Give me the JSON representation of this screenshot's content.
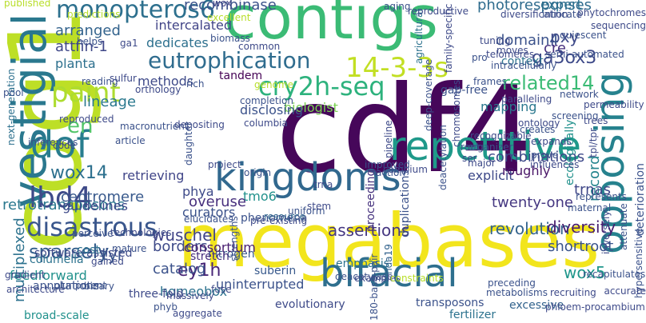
{
  "words": [
    {
      "text": "cdf4",
      "color": "#46075a"
    },
    {
      "text": "cog1",
      "color": "#bddf26"
    },
    {
      "text": "megabases",
      "color": "#f2e51d"
    },
    {
      "text": "contigs",
      "color": "#3bbb75"
    },
    {
      "text": "kingdoms",
      "color": "#31688e"
    },
    {
      "text": "repetitive",
      "color": "#1f998a"
    },
    {
      "text": "bifacial",
      "color": "#2e6f8e"
    },
    {
      "text": "vestigial",
      "color": "#2a788e"
    },
    {
      "text": "opposing",
      "color": "#26828e"
    },
    {
      "text": "dof",
      "color": "#287d8e"
    },
    {
      "text": "14-3-3s",
      "color": "#c2df23"
    },
    {
      "text": "cry2h-seq",
      "color": "#2db27d"
    },
    {
      "text": "disastrous",
      "color": "#39568c"
    },
    {
      "text": "paint",
      "color": "#addc30"
    },
    {
      "text": "lbd4",
      "color": "#3e4a89"
    },
    {
      "text": "monopteros6",
      "color": "#2d708e"
    },
    {
      "text": "eutrophication",
      "color": "#2f6c8e"
    },
    {
      "text": "related14",
      "color": "#3bbb75"
    },
    {
      "text": "sparsely",
      "color": "#35608d"
    },
    {
      "text": "en",
      "color": "#52c569"
    },
    {
      "text": "ey1h",
      "color": "#482677"
    },
    {
      "text": "assertions",
      "color": "#453781"
    },
    {
      "text": "revolution",
      "color": "#33638d"
    },
    {
      "text": "retrotransposons",
      "color": "#2a788e"
    },
    {
      "text": "wuschel",
      "color": "#414487"
    },
    {
      "text": "shortroot",
      "color": "#3a548c"
    },
    {
      "text": "homeobox",
      "color": "#2c728e"
    },
    {
      "text": "uninterrupted",
      "color": "#3b528b"
    },
    {
      "text": "feedforward",
      "color": "#21918c"
    },
    {
      "text": "tyr",
      "color": "#39568c"
    },
    {
      "text": "wox14",
      "color": "#2d708e"
    },
    {
      "text": "retrieving",
      "color": "#404588"
    },
    {
      "text": "centromere",
      "color": "#38598c"
    },
    {
      "text": "guidelines",
      "color": "#3e4989"
    },
    {
      "text": "lineage",
      "color": "#2a788e"
    },
    {
      "text": "attfin-1",
      "color": "#3f4788"
    },
    {
      "text": "arranged",
      "color": "#33638d"
    },
    {
      "text": "planta",
      "color": "#2d708e"
    },
    {
      "text": "methods",
      "color": "#3e4a89"
    },
    {
      "text": "tandem",
      "color": "#440154"
    },
    {
      "text": "biologist",
      "color": "#7ad151"
    },
    {
      "text": "mapping",
      "color": "#2a788e"
    },
    {
      "text": "duplications",
      "color": "#3b528b"
    },
    {
      "text": "proceeding",
      "color": "#46327e"
    },
    {
      "text": "explicit",
      "color": "#3e4989"
    },
    {
      "text": "twenty-one",
      "color": "#453781"
    },
    {
      "text": "record",
      "color": "#25858e"
    },
    {
      "text": "diversity",
      "color": "#481d6f"
    },
    {
      "text": "wox5",
      "color": "#1f968b"
    },
    {
      "text": "trnas",
      "color": "#3f4788"
    },
    {
      "text": "deterioration",
      "color": "#3b528b"
    },
    {
      "text": "pxy",
      "color": "#3e4989"
    },
    {
      "text": "domain4",
      "color": "#3b528b"
    },
    {
      "text": "cre",
      "color": "#472f7d"
    },
    {
      "text": "photoresponses",
      "color": "#2f6c8e"
    },
    {
      "text": "expert",
      "color": "#2d708e"
    },
    {
      "text": "ga3ox3",
      "color": "#3e4a89"
    },
    {
      "text": "context",
      "color": "#2c728e"
    },
    {
      "text": "recombinase",
      "color": "#3b528b"
    },
    {
      "text": "intercalated",
      "color": "#414487"
    },
    {
      "text": "dedicates",
      "color": "#2d708e"
    },
    {
      "text": "phya",
      "color": "#3e4a89"
    },
    {
      "text": "tmo6",
      "color": "#21918c"
    },
    {
      "text": "overuse",
      "color": "#472f7d"
    },
    {
      "text": "curators",
      "color": "#3b528b"
    },
    {
      "text": "catalog",
      "color": "#3b528b"
    },
    {
      "text": "nitrogen",
      "color": "#38598c"
    },
    {
      "text": "borders",
      "color": "#3e4a89"
    },
    {
      "text": "phenomena",
      "color": "#3b528b"
    },
    {
      "text": "consortium",
      "color": "#481d6f"
    },
    {
      "text": "stretch",
      "color": "#472f7d"
    },
    {
      "text": "resource",
      "color": "#31688e"
    },
    {
      "text": "disclosing",
      "color": "#3b528b"
    },
    {
      "text": "combinations",
      "color": "#3e4989"
    },
    {
      "text": "roughly",
      "color": "#481467"
    },
    {
      "text": "emphasis",
      "color": "#2c728e"
    },
    {
      "text": "suberin",
      "color": "#38598c"
    },
    {
      "text": "evolutionary",
      "color": "#3e4a89"
    },
    {
      "text": "180-base-pair",
      "color": "#3b528b"
    },
    {
      "text": "hda19",
      "color": "#33638d"
    },
    {
      "text": "multiplexed",
      "color": "#2c728e"
    },
    {
      "text": "inferences",
      "color": "#3b528b"
    },
    {
      "text": "software-assisted",
      "color": "#3e4a89"
    },
    {
      "text": "columella",
      "color": "#2c728e"
    },
    {
      "text": "cost",
      "color": "#2d708e"
    },
    {
      "text": "annotations",
      "color": "#3b528b"
    },
    {
      "text": "broad-scale",
      "color": "#21918c"
    },
    {
      "text": "three-fold",
      "color": "#3e4a89"
    },
    {
      "text": "next-generation",
      "color": "#2d708e"
    },
    {
      "text": "chromosomes",
      "color": "#3e4989"
    },
    {
      "text": "wox",
      "color": "#414487"
    },
    {
      "text": "gap-free",
      "color": "#3b528b"
    },
    {
      "text": "ecologically",
      "color": "#21918c"
    },
    {
      "text": "semi-automated",
      "color": "#3b528b"
    },
    {
      "text": "recognizable",
      "color": "#3e4a89"
    },
    {
      "text": "tpl/tpr",
      "color": "#3e4a89"
    },
    {
      "text": "pipeline",
      "color": "#3e4a89"
    },
    {
      "text": "deacetylation",
      "color": "#3b528b"
    },
    {
      "text": "transposons",
      "color": "#3b528b"
    },
    {
      "text": "fertilizer",
      "color": "#2c728e"
    },
    {
      "text": "excessive",
      "color": "#33638d"
    },
    {
      "text": "phloem-procambium",
      "color": "#3e4a89"
    },
    {
      "text": "recapitulates",
      "color": "#3b528b"
    },
    {
      "text": "published",
      "color": "#b8de29"
    },
    {
      "text": "predictions",
      "color": "#b8de29"
    },
    {
      "text": "helps",
      "color": "#3b528b"
    },
    {
      "text": "ga1",
      "color": "#3e4a89"
    },
    {
      "text": "agricultural",
      "color": "#2c728e"
    },
    {
      "text": "diversification",
      "color": "#3e4a89"
    },
    {
      "text": "intricate",
      "color": "#3b528b"
    },
    {
      "text": "phytochromes",
      "color": "#3e4a89"
    },
    {
      "text": "quiescent",
      "color": "#3b528b"
    },
    {
      "text": "sequencing",
      "color": "#3e4a89"
    },
    {
      "text": "hypersensitive",
      "color": "#3b528b"
    },
    {
      "text": "reproductive",
      "color": "#3e4a89"
    },
    {
      "text": "deep-coverage",
      "color": "#3b528b"
    },
    {
      "text": "family-specific",
      "color": "#3e4a89"
    },
    {
      "text": "intracellularly",
      "color": "#3b528b"
    },
    {
      "text": "telomeres",
      "color": "#3e4a89"
    },
    {
      "text": "frames",
      "color": "#3b528b"
    },
    {
      "text": "paralleling",
      "color": "#3e4a89"
    },
    {
      "text": "network",
      "color": "#3b528b"
    },
    {
      "text": "permeability",
      "color": "#3e4a89"
    },
    {
      "text": "screening",
      "color": "#3b528b"
    },
    {
      "text": "trees",
      "color": "#3e4a89"
    },
    {
      "text": "creates",
      "color": "#3b528b"
    },
    {
      "text": "ontology",
      "color": "#3e4a89"
    },
    {
      "text": "improved",
      "color": "#3b528b"
    },
    {
      "text": "cambium",
      "color": "#3e4a89"
    },
    {
      "text": "strengths",
      "color": "#3b528b"
    },
    {
      "text": "pre-existing",
      "color": "#3e4a89"
    },
    {
      "text": "elucidates",
      "color": "#3b528b"
    },
    {
      "text": "technologies",
      "color": "#3e4a89"
    },
    {
      "text": "perceive",
      "color": "#3b528b"
    },
    {
      "text": "architecture",
      "color": "#3e4a89"
    },
    {
      "text": "pluripotent",
      "color": "#3b528b"
    },
    {
      "text": "gradient",
      "color": "#3e4a89"
    },
    {
      "text": "article",
      "color": "#3b528b"
    },
    {
      "text": "code",
      "color": "#3e4a89"
    },
    {
      "text": "macronutrient",
      "color": "#3b528b"
    },
    {
      "text": "depositing",
      "color": "#3e4a89"
    },
    {
      "text": "daughter",
      "color": "#3b528b"
    },
    {
      "text": "project",
      "color": "#3e4a89"
    },
    {
      "text": "origin",
      "color": "#3b528b"
    },
    {
      "text": "columbia",
      "color": "#3e4a89"
    },
    {
      "text": "completion",
      "color": "#3b528b"
    },
    {
      "text": "genome",
      "color": "#b8de29"
    },
    {
      "text": "rich",
      "color": "#3b528b"
    },
    {
      "text": "orthology",
      "color": "#3e4a89"
    },
    {
      "text": "reading",
      "color": "#3b528b"
    },
    {
      "text": "sulfur",
      "color": "#3e4a89"
    },
    {
      "text": "pool",
      "color": "#3b528b"
    },
    {
      "text": "reproduced",
      "color": "#3e4a89"
    },
    {
      "text": "biomass",
      "color": "#3b528b"
    },
    {
      "text": "excellent",
      "color": "#b8de29"
    },
    {
      "text": "common",
      "color": "#3e4a89"
    },
    {
      "text": "aging",
      "color": "#3b528b"
    },
    {
      "text": "tuning",
      "color": "#3e4a89"
    },
    {
      "text": "pro",
      "color": "#3b528b"
    },
    {
      "text": "moves",
      "color": "#3e4a89"
    },
    {
      "text": "root",
      "color": "#3b528b"
    },
    {
      "text": "ser",
      "color": "#3e4a89"
    },
    {
      "text": "prove",
      "color": "#3b528b"
    },
    {
      "text": "influences",
      "color": "#3e4a89"
    },
    {
      "text": "represents",
      "color": "#3b528b"
    },
    {
      "text": "inversely",
      "color": "#3e4a89"
    },
    {
      "text": "maternal",
      "color": "#3b528b"
    },
    {
      "text": "expands",
      "color": "#3e4a89"
    },
    {
      "text": "organizer",
      "color": "#3b528b"
    },
    {
      "text": "major",
      "color": "#3e4a89"
    },
    {
      "text": "action",
      "color": "#3b528b"
    },
    {
      "text": "trna",
      "color": "#3e4a89"
    },
    {
      "text": "deacetylase",
      "color": "#3b528b"
    },
    {
      "text": "examples",
      "color": "#3e4a89"
    },
    {
      "text": "constraints",
      "color": "#b8de29"
    },
    {
      "text": "metabolisms",
      "color": "#3b528b"
    },
    {
      "text": "recruiting",
      "color": "#3e4a89"
    },
    {
      "text": "preceding",
      "color": "#3b528b"
    },
    {
      "text": "accurate",
      "color": "#3e4a89"
    },
    {
      "text": "attenuate",
      "color": "#3b528b"
    },
    {
      "text": "fuse",
      "color": "#3e4a89"
    },
    {
      "text": "uniform",
      "color": "#3b528b"
    },
    {
      "text": "stem",
      "color": "#3e4a89"
    },
    {
      "text": "mature",
      "color": "#3b528b"
    },
    {
      "text": "gained",
      "color": "#3e4a89"
    },
    {
      "text": "binary",
      "color": "#3b528b"
    },
    {
      "text": "massively",
      "color": "#3e4a89"
    },
    {
      "text": "phyb",
      "color": "#3b528b"
    },
    {
      "text": "aggregate",
      "color": "#3e4a89"
    },
    {
      "text": "ecotype",
      "color": "#3b528b"
    },
    {
      "text": "alignments",
      "color": "#3e4a89"
    },
    {
      "text": "fine",
      "color": "#b8de29"
    },
    {
      "text": "building",
      "color": "#3b528b"
    },
    {
      "text": "bundle",
      "color": "#3e4a89"
    },
    {
      "text": "niches",
      "color": "#b8de29"
    },
    {
      "text": "support",
      "color": "#3b528b"
    }
  ]
}
